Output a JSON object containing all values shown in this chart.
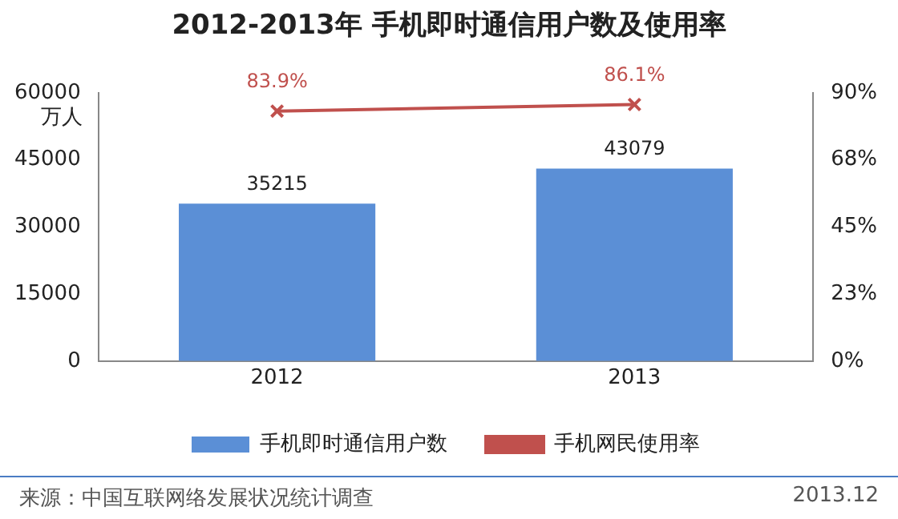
{
  "chart_data": {
    "type": "bar",
    "title": "2012-2013年 手机即时通信用户数及使用率",
    "ylabel": "万人",
    "categories": [
      "2012",
      "2013"
    ],
    "series": [
      {
        "name": "手机即时通信用户数",
        "color": "#5b8fd6",
        "values": [
          35215,
          43079
        ],
        "value_labels": [
          "35215",
          "43079"
        ]
      },
      {
        "name": "手机网民使用率",
        "type": "line",
        "axis": "y2",
        "color": "#c0504d",
        "marker": "cross",
        "values": [
          83.9,
          86.1
        ],
        "value_labels": [
          "83.9%",
          "86.1%"
        ]
      }
    ],
    "ylim": [
      0,
      60000
    ],
    "yticks": [
      0,
      15000,
      30000,
      45000,
      60000
    ],
    "y2lim": [
      0,
      90
    ],
    "y2ticks": [
      {
        "value": 0,
        "label": "0%"
      },
      {
        "value": 22.5,
        "label": "23%"
      },
      {
        "value": 45,
        "label": "45%"
      },
      {
        "value": 67.5,
        "label": "68%"
      },
      {
        "value": 90,
        "label": "90%"
      }
    ],
    "grid": false,
    "legend": "bottom",
    "annotations": [
      "来源：中国互联网络发展状况统计调查",
      "2013.12"
    ]
  }
}
